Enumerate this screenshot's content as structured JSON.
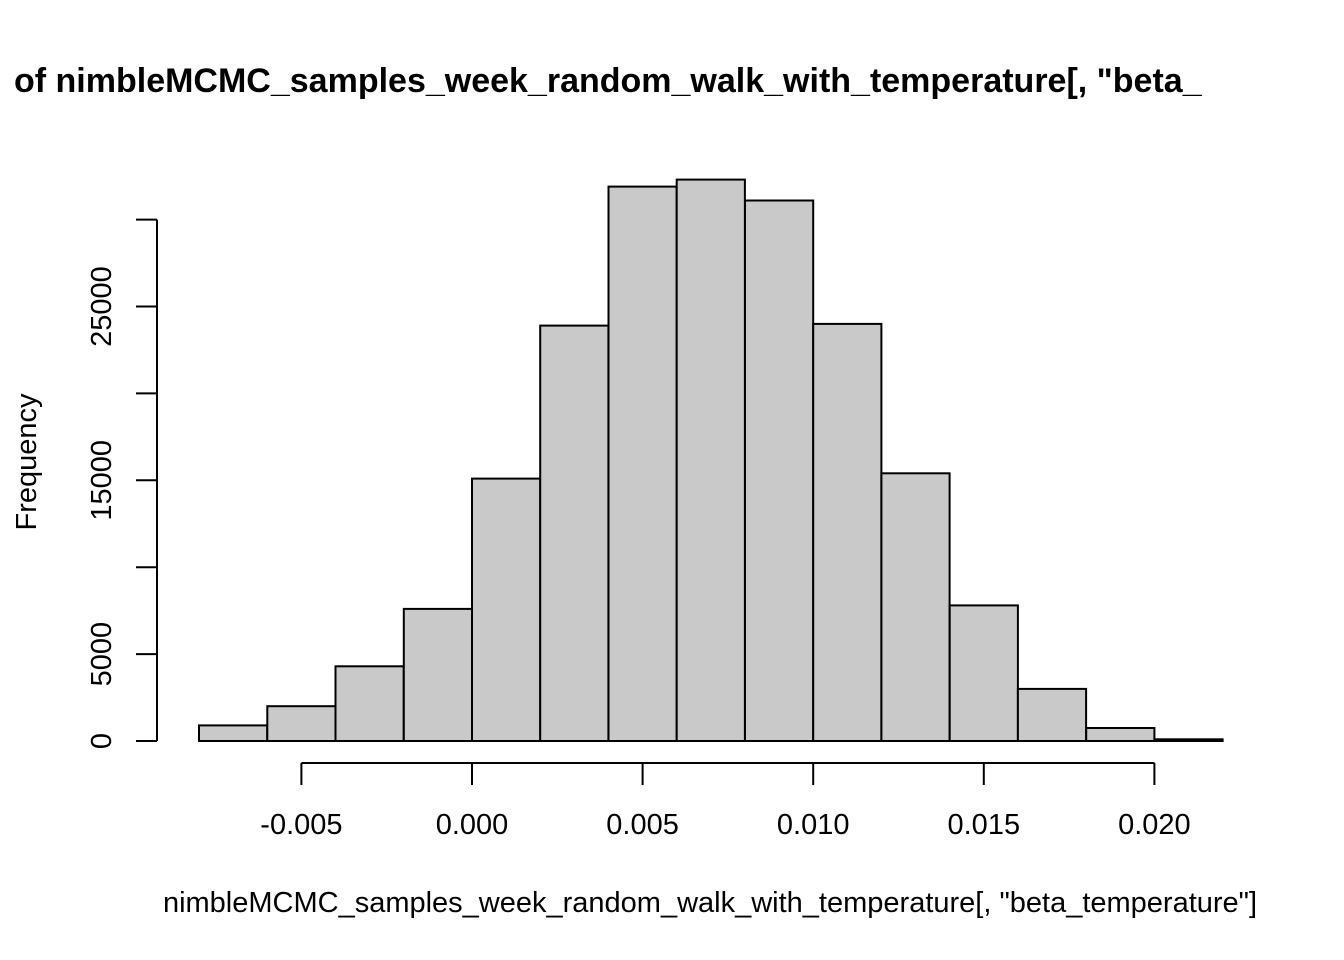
{
  "chart_data": {
    "type": "bar",
    "title": "of nimbleMCMC_samples_week_random_walk_with_temperature[, \"beta_",
    "xlabel": "nimbleMCMC_samples_week_random_walk_with_temperature[, \"beta_temperature\"]",
    "ylabel": "Frequency",
    "bins": [
      {
        "x0": -0.008,
        "x1": -0.006,
        "value": 900
      },
      {
        "x0": -0.006,
        "x1": -0.004,
        "value": 2000
      },
      {
        "x0": -0.004,
        "x1": -0.002,
        "value": 4300
      },
      {
        "x0": -0.002,
        "x1": 0.0,
        "value": 7600
      },
      {
        "x0": 0.0,
        "x1": 0.002,
        "value": 15100
      },
      {
        "x0": 0.002,
        "x1": 0.004,
        "value": 23900
      },
      {
        "x0": 0.004,
        "x1": 0.006,
        "value": 31900
      },
      {
        "x0": 0.006,
        "x1": 0.008,
        "value": 32300
      },
      {
        "x0": 0.008,
        "x1": 0.01,
        "value": 31100
      },
      {
        "x0": 0.01,
        "x1": 0.012,
        "value": 24000
      },
      {
        "x0": 0.012,
        "x1": 0.014,
        "value": 15400
      },
      {
        "x0": 0.014,
        "x1": 0.016,
        "value": 7800
      },
      {
        "x0": 0.016,
        "x1": 0.018,
        "value": 3000
      },
      {
        "x0": 0.018,
        "x1": 0.02,
        "value": 750
      },
      {
        "x0": 0.02,
        "x1": 0.022,
        "value": 100
      }
    ],
    "xlim": [
      -0.008,
      0.022
    ],
    "ylim": [
      0,
      30000
    ],
    "x_ticks": [
      -0.005,
      0.0,
      0.005,
      0.01,
      0.015,
      0.02
    ],
    "x_tick_labels": [
      "-0.005",
      "0.000",
      "0.005",
      "0.010",
      "0.015",
      "0.020"
    ],
    "y_ticks": [
      0,
      5000,
      10000,
      15000,
      20000,
      25000,
      30000
    ],
    "y_tick_labels": [
      "0",
      "5000",
      "",
      "15000",
      "",
      "25000",
      ""
    ],
    "grid": false,
    "legend": "none"
  }
}
